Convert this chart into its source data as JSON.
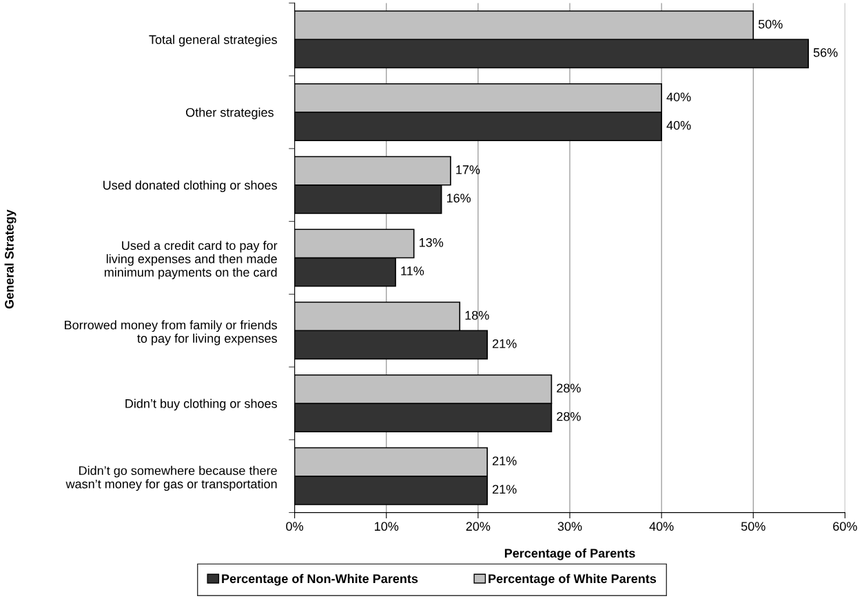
{
  "chart_data": {
    "type": "bar",
    "orientation": "horizontal",
    "xlabel": "Percentage of Parents",
    "ylabel": "General Strategy",
    "categories": [
      "Total general strategies",
      "Other strategies ",
      "Used donated clothing or shoes",
      "Used a credit card to pay for\nliving expenses and then made\nminimum payments on the card",
      "Borrowed money from family or friends\nto pay for living expenses",
      "Didn’t buy clothing or shoes",
      "Didn’t go somewhere because there\nwasn’t money for gas or transportation"
    ],
    "series": [
      {
        "name": "Percentage of Non-White Parents",
        "color": "#333333",
        "values": [
          56,
          40,
          16,
          11,
          21,
          28,
          21
        ],
        "value_labels": [
          "56%",
          "40%",
          "16%",
          "11%",
          "21%",
          "28%",
          "21%"
        ]
      },
      {
        "name": "Percentage of White Parents",
        "color": "#c0c0c0",
        "values": [
          50,
          40,
          17,
          13,
          18,
          28,
          21
        ],
        "value_labels": [
          "50%",
          "40%",
          "17%",
          "13%",
          "18%",
          "28%",
          "21%"
        ]
      }
    ],
    "xlim": [
      0,
      60
    ],
    "xticks": [
      {
        "value": 0,
        "label": "0%"
      },
      {
        "value": 10,
        "label": "10%"
      },
      {
        "value": 20,
        "label": "20%"
      },
      {
        "value": 30,
        "label": "30%"
      },
      {
        "value": 40,
        "label": "40%"
      },
      {
        "value": 50,
        "label": "50%"
      },
      {
        "value": 60,
        "label": "60%"
      }
    ],
    "grid": "x",
    "legend": "bottom"
  }
}
